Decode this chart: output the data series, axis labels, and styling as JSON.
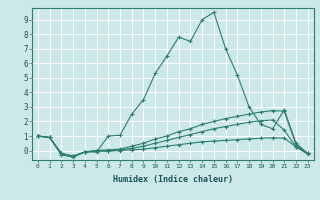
{
  "title": "",
  "xlabel": "Humidex (Indice chaleur)",
  "bg_color": "#cce8e8",
  "grid_color": "#ffffff",
  "line_color": "#2e7d6e",
  "xlim": [
    -0.5,
    23.5
  ],
  "ylim": [
    -0.65,
    9.8
  ],
  "xticks": [
    0,
    1,
    2,
    3,
    4,
    5,
    6,
    7,
    8,
    9,
    10,
    11,
    12,
    13,
    14,
    15,
    16,
    17,
    18,
    19,
    20,
    21,
    22,
    23
  ],
  "yticks": [
    0,
    1,
    2,
    3,
    4,
    5,
    6,
    7,
    8,
    9
  ],
  "lines": [
    {
      "x": [
        0,
        1,
        2,
        3,
        4,
        5,
        6,
        7,
        8,
        9,
        10,
        11,
        12,
        13,
        14,
        15,
        16,
        17,
        18,
        19,
        20,
        21,
        22,
        23
      ],
      "y": [
        1.0,
        0.9,
        -0.3,
        -0.45,
        -0.1,
        -0.1,
        1.0,
        1.05,
        2.5,
        3.5,
        5.3,
        6.5,
        7.8,
        7.5,
        9.0,
        9.5,
        7.0,
        5.2,
        3.0,
        1.8,
        1.5,
        2.8,
        0.5,
        -0.2
      ]
    },
    {
      "x": [
        0,
        1,
        2,
        3,
        4,
        5,
        6,
        7,
        8,
        9,
        10,
        11,
        12,
        13,
        14,
        15,
        16,
        17,
        18,
        19,
        20,
        21,
        22,
        23
      ],
      "y": [
        1.0,
        0.9,
        -0.2,
        -0.4,
        -0.1,
        0.0,
        0.05,
        0.1,
        0.3,
        0.5,
        0.8,
        1.0,
        1.3,
        1.5,
        1.8,
        2.0,
        2.2,
        2.35,
        2.5,
        2.65,
        2.75,
        2.7,
        0.4,
        -0.2
      ]
    },
    {
      "x": [
        0,
        1,
        2,
        3,
        4,
        5,
        6,
        7,
        8,
        9,
        10,
        11,
        12,
        13,
        14,
        15,
        16,
        17,
        18,
        19,
        20,
        21,
        22,
        23
      ],
      "y": [
        1.0,
        0.9,
        -0.2,
        -0.4,
        -0.1,
        0.0,
        0.0,
        0.05,
        0.15,
        0.3,
        0.5,
        0.7,
        0.9,
        1.1,
        1.3,
        1.5,
        1.65,
        1.8,
        1.95,
        2.05,
        2.1,
        1.4,
        0.25,
        -0.2
      ]
    },
    {
      "x": [
        0,
        1,
        2,
        3,
        4,
        5,
        6,
        7,
        8,
        9,
        10,
        11,
        12,
        13,
        14,
        15,
        16,
        17,
        18,
        19,
        20,
        21,
        22,
        23
      ],
      "y": [
        1.0,
        0.9,
        -0.2,
        -0.38,
        -0.1,
        -0.05,
        -0.05,
        0.0,
        0.05,
        0.1,
        0.2,
        0.3,
        0.4,
        0.5,
        0.6,
        0.65,
        0.7,
        0.75,
        0.8,
        0.85,
        0.88,
        0.85,
        0.25,
        -0.25
      ]
    }
  ]
}
